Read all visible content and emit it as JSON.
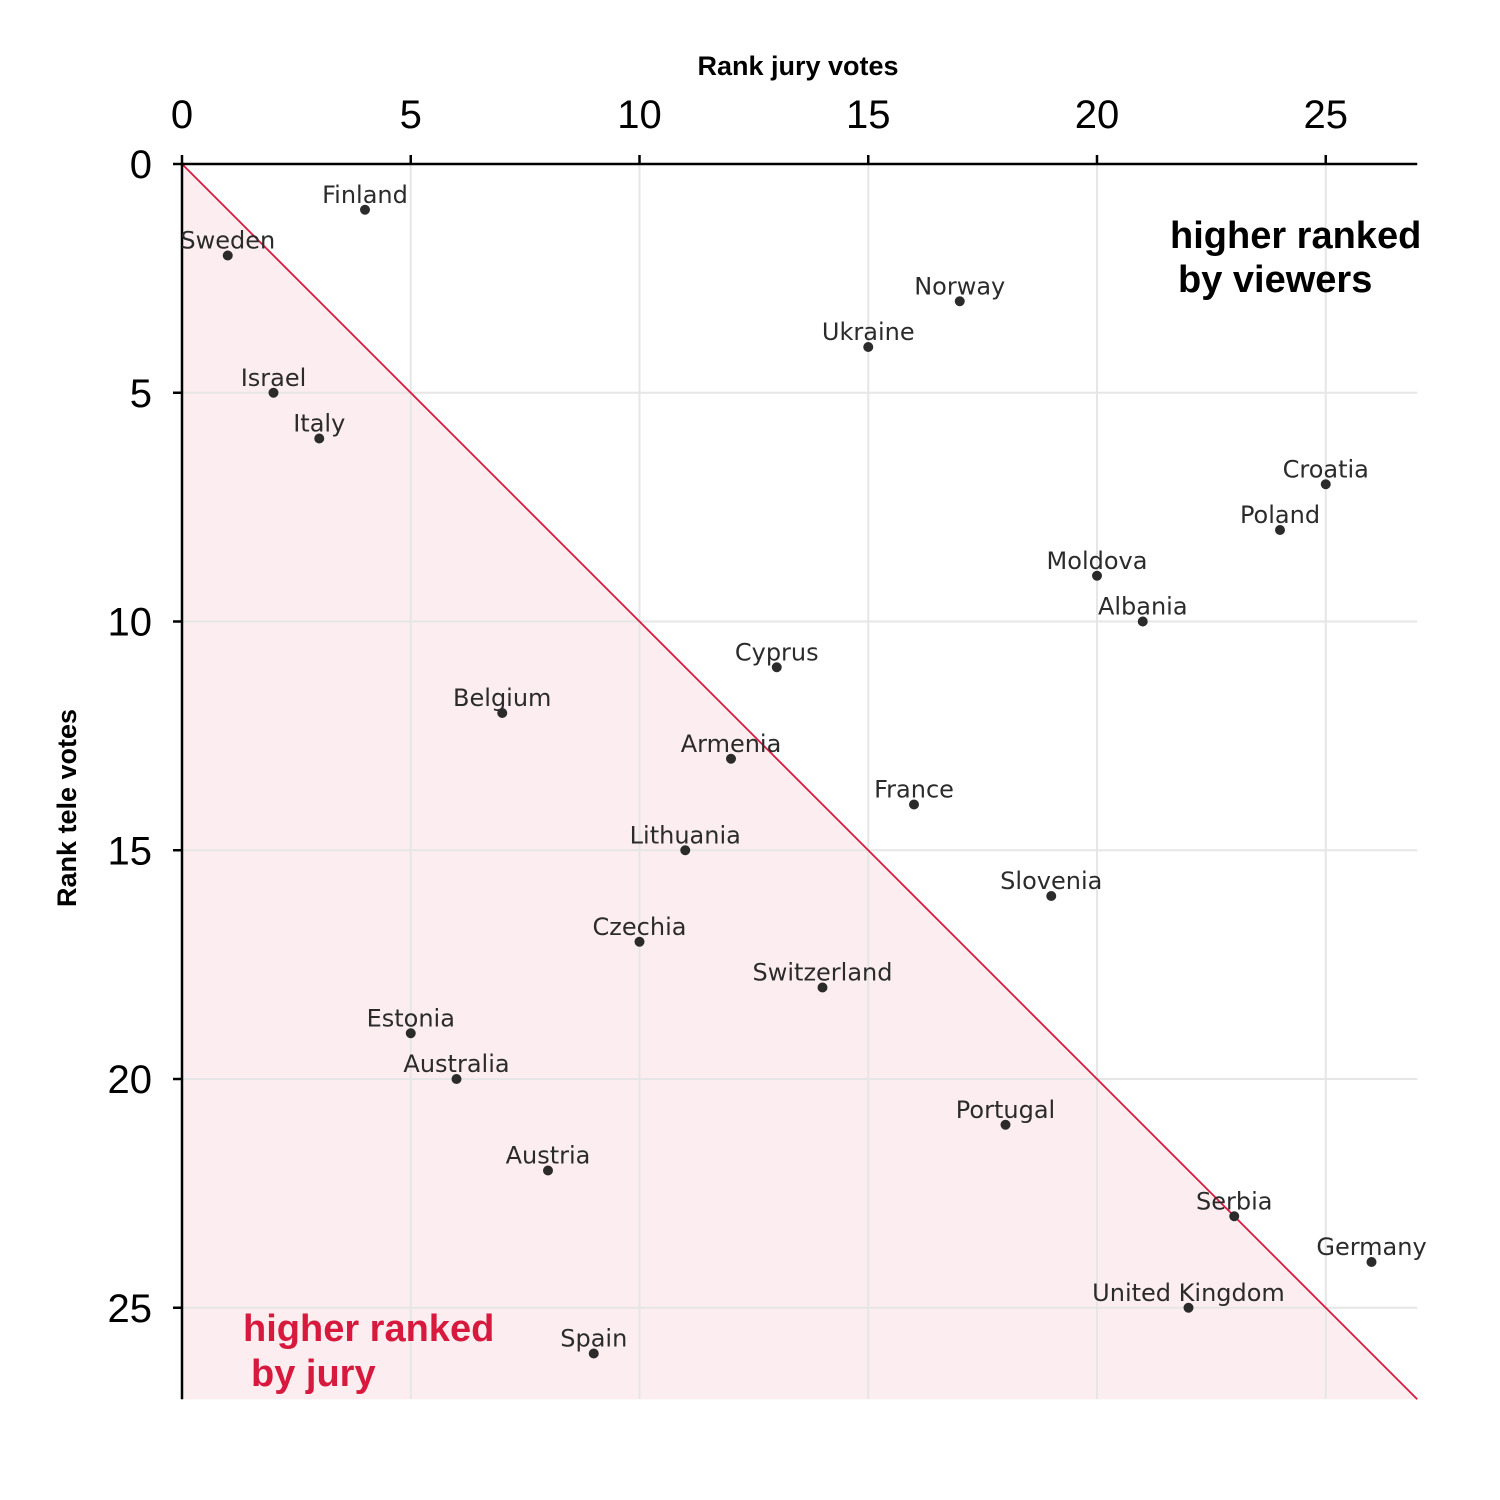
{
  "chart_data": {
    "type": "scatter",
    "xlabel": "Rank jury votes",
    "ylabel": "Rank tele votes",
    "xlim": [
      0,
      27
    ],
    "ylim": [
      0,
      27
    ],
    "x_ticks": [
      "0",
      "5",
      "10",
      "15",
      "20",
      "25"
    ],
    "y_ticks": [
      "0",
      "5",
      "10",
      "15",
      "20",
      "25"
    ],
    "x_tick_values": [
      0,
      5,
      10,
      15,
      20,
      25
    ],
    "y_tick_values": [
      0,
      5,
      10,
      15,
      20,
      25
    ],
    "x_axis_position": "top",
    "y_axis_inverted": true,
    "grid": true,
    "reference_line": "diagonal y = x",
    "colors": {
      "diagonal": "#d7193d",
      "shade": "#fceef0",
      "points": "#2b2b2b",
      "jury_annotation": "#d7193d",
      "viewers_annotation": "#000000"
    },
    "annotations": {
      "viewers": [
        "higher ranked",
        "by viewers"
      ],
      "jury": [
        "higher ranked",
        "by jury"
      ]
    },
    "points": [
      {
        "label": "Finland",
        "x": 4,
        "y": 1
      },
      {
        "label": "Sweden",
        "x": 1,
        "y": 2
      },
      {
        "label": "Norway",
        "x": 17,
        "y": 3
      },
      {
        "label": "Ukraine",
        "x": 15,
        "y": 4
      },
      {
        "label": "Israel",
        "x": 2,
        "y": 5
      },
      {
        "label": "Italy",
        "x": 3,
        "y": 6
      },
      {
        "label": "Croatia",
        "x": 25,
        "y": 7
      },
      {
        "label": "Poland",
        "x": 24,
        "y": 8
      },
      {
        "label": "Moldova",
        "x": 20,
        "y": 9
      },
      {
        "label": "Albania",
        "x": 21,
        "y": 10
      },
      {
        "label": "Cyprus",
        "x": 13,
        "y": 11
      },
      {
        "label": "Belgium",
        "x": 7,
        "y": 12
      },
      {
        "label": "Armenia",
        "x": 12,
        "y": 13
      },
      {
        "label": "France",
        "x": 16,
        "y": 14
      },
      {
        "label": "Lithuania",
        "x": 11,
        "y": 15
      },
      {
        "label": "Slovenia",
        "x": 19,
        "y": 16
      },
      {
        "label": "Czechia",
        "x": 10,
        "y": 17
      },
      {
        "label": "Switzerland",
        "x": 14,
        "y": 18
      },
      {
        "label": "Estonia",
        "x": 5,
        "y": 19
      },
      {
        "label": "Australia",
        "x": 6,
        "y": 20
      },
      {
        "label": "Portugal",
        "x": 18,
        "y": 21
      },
      {
        "label": "Austria",
        "x": 8,
        "y": 22
      },
      {
        "label": "Serbia",
        "x": 23,
        "y": 23
      },
      {
        "label": "Germany",
        "x": 26,
        "y": 24
      },
      {
        "label": "United Kingdom",
        "x": 22,
        "y": 25
      },
      {
        "label": "Spain",
        "x": 9,
        "y": 26
      }
    ]
  }
}
